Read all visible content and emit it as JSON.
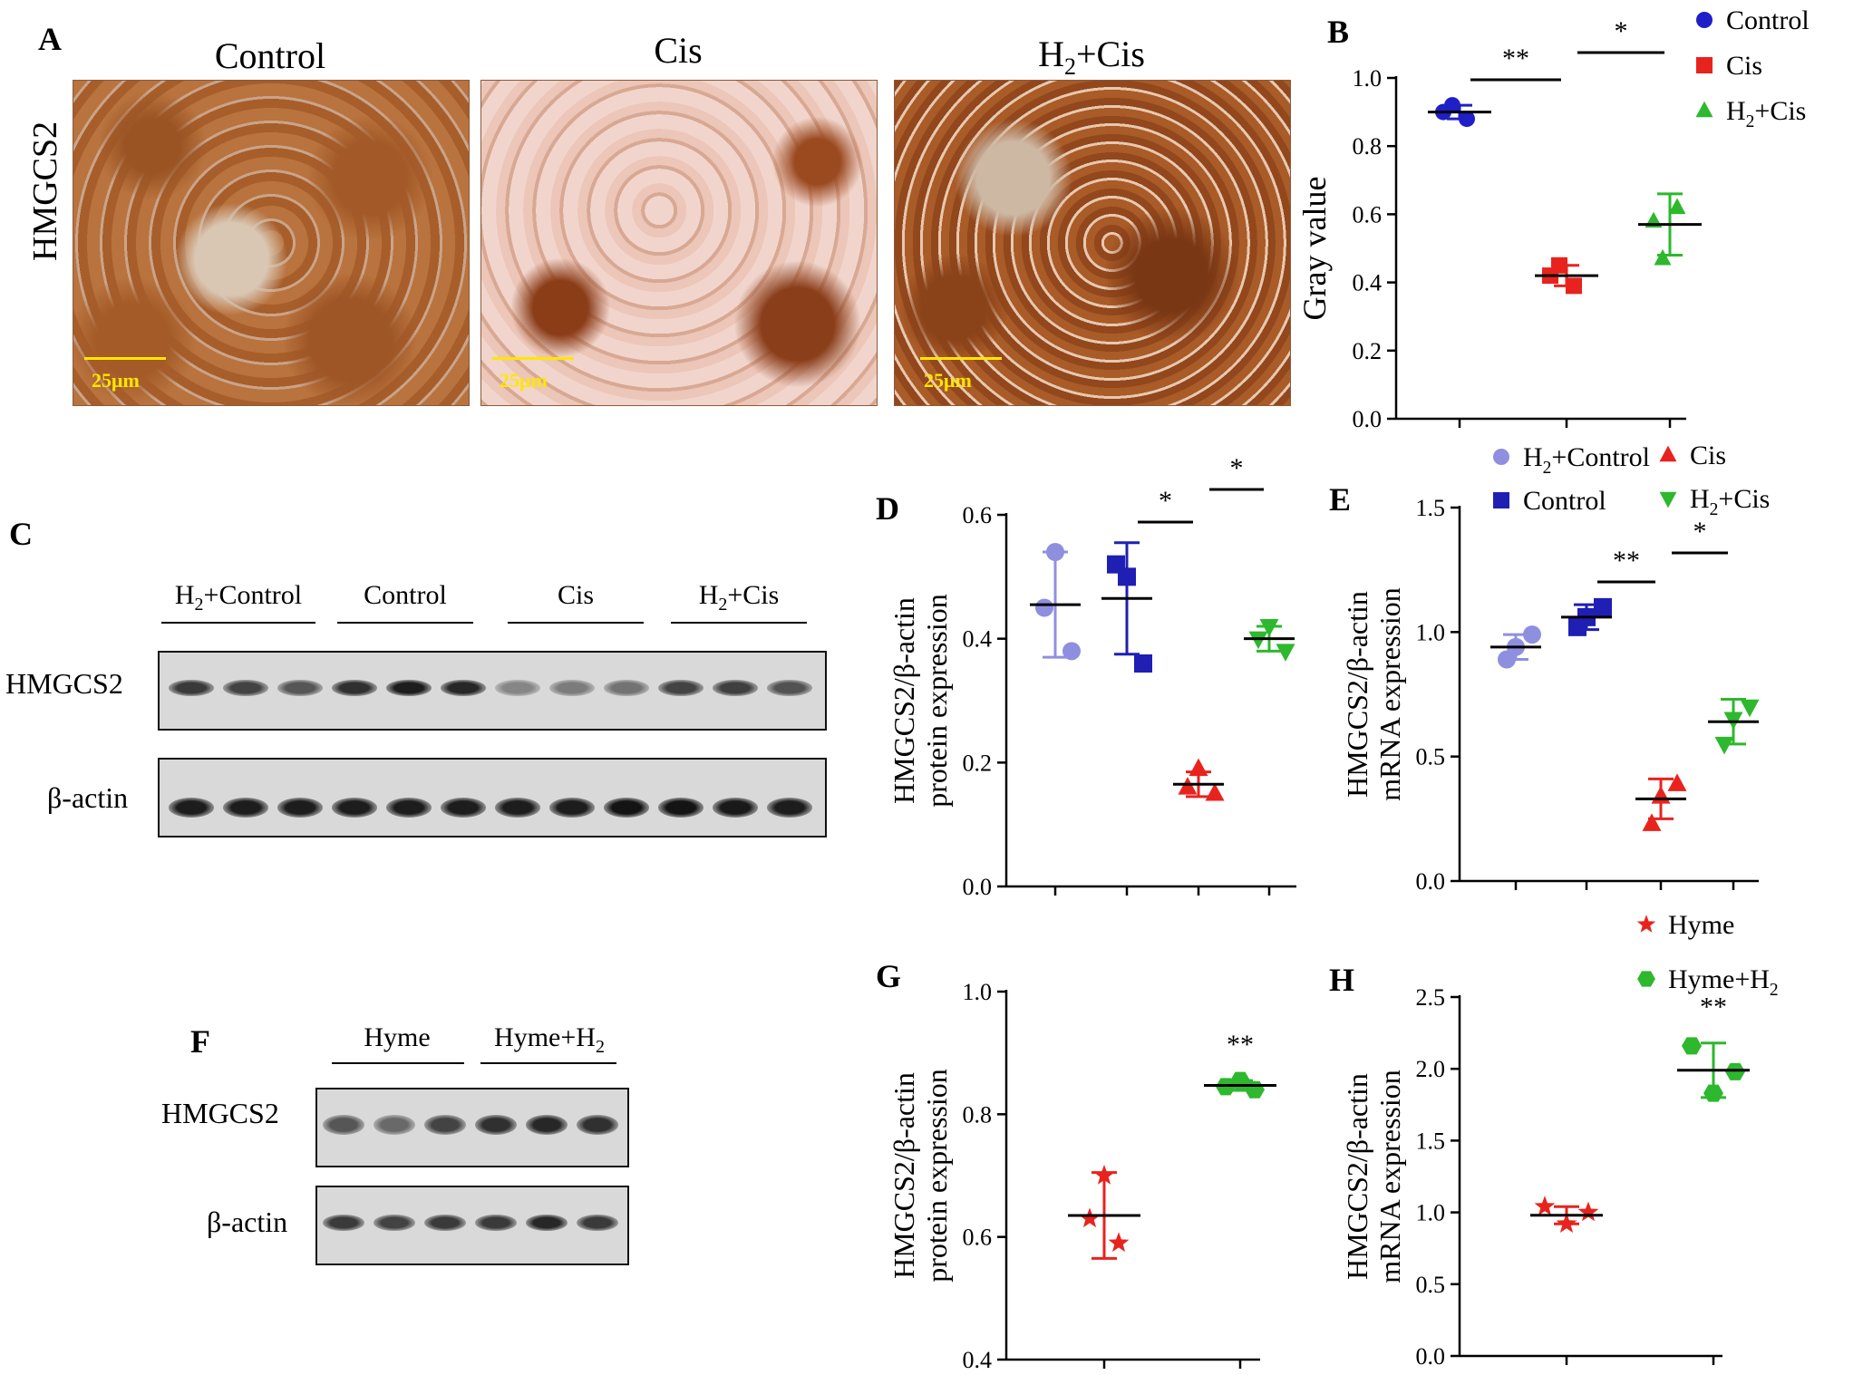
{
  "panels": {
    "A": {
      "letter": "A",
      "row_label": "HMGCS2",
      "images": [
        {
          "title": "Control",
          "scale": "25μm"
        },
        {
          "title": "Cis",
          "scale": "25μm"
        },
        {
          "title_main": "H",
          "title_sub": "2",
          "title_rest": "+Cis",
          "scale": "25μm"
        }
      ]
    },
    "C": {
      "letter": "C",
      "groups": [
        {
          "label_main": "H",
          "label_sub": "2",
          "label_rest": "+Control"
        },
        {
          "label_main": "Control",
          "label_sub": "",
          "label_rest": ""
        },
        {
          "label_main": "Cis",
          "label_sub": "",
          "label_rest": ""
        },
        {
          "label_main": "H",
          "label_sub": "2",
          "label_rest": "+Cis"
        }
      ],
      "rows": [
        "HMGCS2",
        "β-actin"
      ],
      "hmgcs2_band_intensity": [
        0.75,
        0.7,
        0.6,
        0.8,
        0.9,
        0.85,
        0.35,
        0.4,
        0.45,
        0.7,
        0.72,
        0.62
      ],
      "actin_band_intensity": [
        0.9,
        0.9,
        0.9,
        0.9,
        0.9,
        0.9,
        0.9,
        0.9,
        0.95,
        0.95,
        0.92,
        0.9
      ]
    },
    "F": {
      "letter": "F",
      "groups": [
        {
          "label_main": "Hyme",
          "label_sub": "",
          "label_rest": ""
        },
        {
          "label_main": "Hyme+H",
          "label_sub": "2",
          "label_rest": ""
        }
      ],
      "rows": [
        "HMGCS2",
        "β-actin"
      ],
      "hmgcs2_band_intensity": [
        0.6,
        0.5,
        0.7,
        0.8,
        0.85,
        0.8
      ],
      "actin_band_intensity": [
        0.75,
        0.7,
        0.75,
        0.75,
        0.85,
        0.75
      ]
    }
  },
  "chart_data": [
    {
      "id": "B",
      "letter": "B",
      "type": "scatter",
      "ylabel": "Gray value",
      "ylim": [
        0,
        1.0
      ],
      "yticks": [
        "0.0",
        "0.2",
        "0.4",
        "0.6",
        "0.8",
        "1.0"
      ],
      "series": [
        {
          "name": "Control",
          "color": "#1f1fc8",
          "marker": "circle",
          "points": [
            0.92,
            0.88,
            0.9
          ],
          "mean": 0.9,
          "sd": 0.02
        },
        {
          "name": "Cis",
          "color": "#e8231e",
          "marker": "square",
          "points": [
            0.45,
            0.39,
            0.42
          ],
          "mean": 0.42,
          "sd": 0.03
        },
        {
          "name_main": "H",
          "name_sub": "2",
          "name_rest": "+Cis",
          "name": "H2+Cis",
          "color": "#2db82d",
          "marker": "triangle",
          "points": [
            0.47,
            0.62,
            0.58
          ],
          "mean": 0.57,
          "sd": 0.09
        }
      ],
      "significance": [
        {
          "from": 0,
          "to": 1,
          "label": "**"
        },
        {
          "from": 1,
          "to": 2,
          "label": "*"
        }
      ]
    },
    {
      "id": "D",
      "letter": "D",
      "type": "scatter",
      "ylabel_line1": "HMGCS2/β-actin",
      "ylabel_line2": "protein expression",
      "ylim": [
        0,
        0.6
      ],
      "yticks": [
        "0.0",
        "0.2",
        "0.4",
        "0.6"
      ],
      "series": [
        {
          "name": "H2+Control",
          "color": "#8f8fe0",
          "marker": "circle",
          "points": [
            0.54,
            0.38,
            0.45
          ],
          "mean": 0.455,
          "sd": 0.085
        },
        {
          "name": "Control",
          "color": "#1f1fb4",
          "marker": "square",
          "points": [
            0.5,
            0.36,
            0.52
          ],
          "mean": 0.465,
          "sd": 0.09
        },
        {
          "name": "Cis",
          "color": "#e8231e",
          "marker": "triangle",
          "points": [
            0.19,
            0.15,
            0.16
          ],
          "mean": 0.165,
          "sd": 0.02
        },
        {
          "name": "H2+Cis",
          "color": "#2db82d",
          "marker": "triangle-down",
          "points": [
            0.42,
            0.38,
            0.4
          ],
          "mean": 0.4,
          "sd": 0.02
        }
      ],
      "significance": [
        {
          "from": 1,
          "to": 2,
          "label": "*"
        },
        {
          "from": 2,
          "to": 3,
          "label": "*"
        }
      ]
    },
    {
      "id": "E",
      "letter": "E",
      "type": "scatter",
      "ylabel_line1": "HMGCS2/β-actin",
      "ylabel_line2": "mRNA expression",
      "ylim": [
        0,
        1.5
      ],
      "yticks": [
        "0.0",
        "0.5",
        "1.0",
        "1.5"
      ],
      "series": [
        {
          "name_main": "H",
          "name_sub": "2",
          "name_rest": "+Control",
          "name": "H2+Control",
          "color": "#8f8fe0",
          "marker": "circle",
          "points": [
            0.99,
            0.89,
            0.94
          ],
          "mean": 0.94,
          "sd": 0.05
        },
        {
          "name": "Control",
          "color": "#1f1fb4",
          "marker": "square",
          "points": [
            1.1,
            1.02,
            1.06
          ],
          "mean": 1.06,
          "sd": 0.05
        },
        {
          "name": "Cis",
          "color": "#e8231e",
          "marker": "triangle",
          "points": [
            0.39,
            0.23,
            0.34
          ],
          "mean": 0.33,
          "sd": 0.08
        },
        {
          "name_main": "H",
          "name_sub": "2",
          "name_rest": "+Cis",
          "name": "H2+Cis",
          "color": "#2db82d",
          "marker": "triangle-down",
          "points": [
            0.7,
            0.55,
            0.65
          ],
          "mean": 0.64,
          "sd": 0.09
        }
      ],
      "significance": [
        {
          "from": 1,
          "to": 2,
          "label": "**"
        },
        {
          "from": 2,
          "to": 3,
          "label": "*"
        }
      ]
    },
    {
      "id": "G",
      "letter": "G",
      "type": "scatter",
      "ylabel_line1": "HMGCS2/β-actin",
      "ylabel_line2": "protein expression",
      "ylim": [
        0.4,
        1.0
      ],
      "yticks": [
        "0.4",
        "0.6",
        "0.8",
        "1.0"
      ],
      "series": [
        {
          "name": "Hyme",
          "color": "#e8231e",
          "marker": "star",
          "points": [
            0.7,
            0.59,
            0.63
          ],
          "mean": 0.635,
          "sd": 0.07
        },
        {
          "name": "Hyme+H2",
          "color": "#2db82d",
          "marker": "hexagon",
          "points": [
            0.855,
            0.84,
            0.845
          ],
          "mean": 0.847,
          "sd": 0.008
        }
      ],
      "annotations": [
        {
          "series": 1,
          "label": "**"
        }
      ]
    },
    {
      "id": "H",
      "letter": "H",
      "type": "scatter",
      "ylabel_line1": "HMGCS2/β-actin",
      "ylabel_line2": "mRNA expression",
      "ylim": [
        0,
        2.5
      ],
      "yticks": [
        "0.0",
        "0.5",
        "1.0",
        "1.5",
        "2.0",
        "2.5"
      ],
      "series": [
        {
          "name": "Hyme",
          "color": "#e8231e",
          "marker": "star",
          "points": [
            1.04,
            0.92,
            1.0
          ],
          "mean": 0.98,
          "sd": 0.06
        },
        {
          "name_main": "Hyme+H",
          "name_sub": "2",
          "name_rest": "",
          "name": "Hyme+H2",
          "color": "#2db82d",
          "marker": "hexagon",
          "points": [
            2.16,
            1.83,
            1.98
          ],
          "mean": 1.99,
          "sd": 0.19
        }
      ],
      "annotations": [
        {
          "series": 1,
          "label": "**"
        }
      ]
    }
  ]
}
